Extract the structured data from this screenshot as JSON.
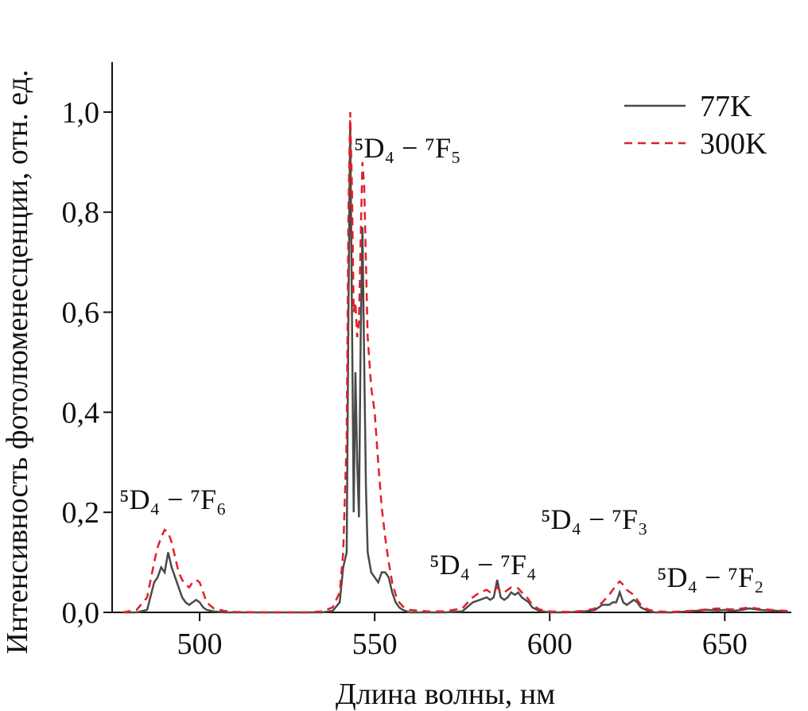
{
  "chart_data": {
    "type": "line",
    "xlabel": "Длина волны, нм",
    "ylabel": "Интенсивность фотолюменесценции, отн. ед.",
    "xlim": [
      475,
      669
    ],
    "ylim": [
      0,
      1.1
    ],
    "xticks": [
      500,
      550,
      600,
      650
    ],
    "yticks": [
      {
        "value": 0,
        "label": "0,0"
      },
      {
        "value": 0.2,
        "label": "0,2"
      },
      {
        "value": 0.4,
        "label": "0,4"
      },
      {
        "value": 0.6,
        "label": "0,6"
      },
      {
        "value": 0.8,
        "label": "0,8"
      },
      {
        "value": 1.0,
        "label": "1,0"
      }
    ],
    "legend": "upper right",
    "annotations": [
      "⁵D₄ − ⁷F₆",
      "⁵D₄ − ⁷F₅",
      "⁵D₄ − ⁷F₄",
      "⁵D₄ − ⁷F₃",
      "⁵D₄ − ⁷F₂"
    ],
    "x": [
      478,
      482,
      485,
      487,
      488,
      489,
      490,
      491,
      492,
      493,
      494,
      495,
      496,
      497,
      498,
      499,
      500,
      501,
      502,
      504,
      507,
      510,
      520,
      530,
      535,
      538,
      540,
      541,
      542,
      542.5,
      543,
      543.5,
      544,
      544.5,
      545,
      545.5,
      546,
      546.5,
      547,
      547.5,
      548,
      549,
      550,
      551,
      552,
      553,
      554,
      555,
      556,
      557,
      558,
      560,
      565,
      570,
      575,
      578,
      580,
      582,
      583,
      584,
      585,
      586,
      587,
      588,
      589,
      590,
      591,
      592,
      593,
      594,
      595,
      597,
      600,
      605,
      610,
      613,
      615,
      617,
      618,
      619,
      620,
      621,
      622,
      623,
      624,
      625,
      626,
      628,
      630,
      635,
      640,
      645,
      648,
      650,
      652,
      655,
      657,
      660,
      665,
      668
    ],
    "series": [
      {
        "name": "77K",
        "color": "#4a4a4a",
        "dash": false,
        "values": [
          0,
          0,
          0.005,
          0.06,
          0.07,
          0.09,
          0.08,
          0.12,
          0.09,
          0.07,
          0.05,
          0.03,
          0.02,
          0.015,
          0.02,
          0.025,
          0.02,
          0.01,
          0.005,
          0.002,
          0,
          0,
          0,
          0,
          0,
          0.003,
          0.02,
          0.09,
          0.12,
          0.6,
          0.98,
          0.6,
          0.2,
          0.48,
          0.3,
          0.19,
          0.55,
          0.77,
          0.5,
          0.25,
          0.12,
          0.08,
          0.07,
          0.06,
          0.08,
          0.08,
          0.07,
          0.04,
          0.02,
          0.01,
          0.005,
          0,
          0,
          0,
          0.002,
          0.02,
          0.025,
          0.03,
          0.025,
          0.03,
          0.065,
          0.03,
          0.025,
          0.03,
          0.04,
          0.035,
          0.04,
          0.03,
          0.025,
          0.02,
          0.01,
          0.003,
          0,
          0,
          0.002,
          0.005,
          0.015,
          0.015,
          0.02,
          0.02,
          0.04,
          0.02,
          0.015,
          0.02,
          0.025,
          0.02,
          0.01,
          0.003,
          0,
          0,
          0.002,
          0.005,
          0.004,
          0.005,
          0.003,
          0.005,
          0.008,
          0.005,
          0.003,
          0.002
        ]
      },
      {
        "name": "300K",
        "color": "#e0202a",
        "dash": true,
        "values": [
          0,
          0.005,
          0.03,
          0.1,
          0.13,
          0.15,
          0.165,
          0.16,
          0.14,
          0.11,
          0.08,
          0.065,
          0.055,
          0.05,
          0.06,
          0.065,
          0.06,
          0.04,
          0.02,
          0.008,
          0.003,
          0.001,
          0,
          0,
          0.002,
          0.01,
          0.04,
          0.12,
          0.35,
          0.8,
          1.0,
          0.85,
          0.6,
          0.62,
          0.55,
          0.58,
          0.75,
          0.9,
          0.85,
          0.7,
          0.55,
          0.45,
          0.4,
          0.3,
          0.21,
          0.15,
          0.1,
          0.06,
          0.035,
          0.02,
          0.012,
          0.005,
          0.002,
          0.002,
          0.008,
          0.03,
          0.04,
          0.045,
          0.04,
          0.045,
          0.05,
          0.04,
          0.04,
          0.045,
          0.05,
          0.05,
          0.048,
          0.04,
          0.035,
          0.025,
          0.015,
          0.006,
          0.002,
          0.001,
          0.003,
          0.008,
          0.02,
          0.035,
          0.045,
          0.055,
          0.062,
          0.055,
          0.045,
          0.04,
          0.035,
          0.025,
          0.015,
          0.006,
          0.002,
          0.001,
          0.003,
          0.006,
          0.008,
          0.007,
          0.006,
          0.008,
          0.01,
          0.007,
          0.004,
          0.003
        ]
      }
    ]
  }
}
